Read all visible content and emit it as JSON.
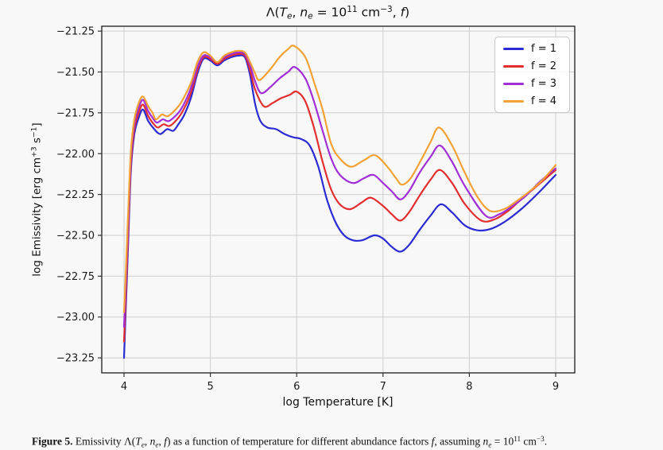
{
  "title": {
    "parts": [
      "Λ(",
      "T",
      "e",
      ", ",
      "n",
      "e",
      " = 10",
      "11",
      " cm",
      "−3",
      ", ",
      "f",
      ")"
    ]
  },
  "ylabel": {
    "parts": [
      "log Emissivity [erg cm",
      "+3",
      " s",
      "−1",
      "]"
    ]
  },
  "xlabel": "log Temperature [K]",
  "caption": {
    "parts": [
      "Figure 5.",
      " Emissivity Λ(",
      "T",
      "e",
      ", ",
      "n",
      "e",
      ", ",
      "f",
      ") as a function of temperature for different abundance factors ",
      "f",
      ", assuming ",
      "n",
      "e",
      " = 10",
      "11",
      " cm",
      "−3",
      "."
    ]
  },
  "colors": {
    "background": "#f8f8f8",
    "grid": "#cfcfcf",
    "spine": "#2c2c2c",
    "tick": "#333333"
  },
  "chart_data": {
    "type": "line",
    "title": "Λ(T_e, n_e = 10^11 cm^-3, f)",
    "xlabel": "log Temperature [K]",
    "ylabel": "log Emissivity [erg cm^+3 s^-1]",
    "grid": true,
    "legend_position": "upper right",
    "xlim": [
      3.742,
      9.221
    ],
    "ylim": [
      -23.342,
      -21.22
    ],
    "x_ticks": {
      "values": [
        4,
        5,
        6,
        7,
        8,
        9
      ],
      "labels": [
        "4",
        "5",
        "6",
        "7",
        "8",
        "9"
      ]
    },
    "y_ticks": {
      "values": [
        -21.25,
        -21.5,
        -21.75,
        -22.0,
        -22.25,
        -22.5,
        -22.75,
        -23.0,
        -23.25
      ],
      "labels": [
        "−21.25",
        "−21.50",
        "−21.75",
        "−22.00",
        "−22.25",
        "−22.50",
        "−22.75",
        "−23.00",
        "−23.25"
      ]
    },
    "series": [
      {
        "name": "f = 1",
        "color": "#2b2bd3",
        "points": [
          [
            4.0,
            -23.25
          ],
          [
            4.02,
            -22.95
          ],
          [
            4.05,
            -22.52
          ],
          [
            4.08,
            -22.1
          ],
          [
            4.12,
            -21.88
          ],
          [
            4.17,
            -21.78
          ],
          [
            4.22,
            -21.73
          ],
          [
            4.28,
            -21.8
          ],
          [
            4.35,
            -21.85
          ],
          [
            4.42,
            -21.88
          ],
          [
            4.5,
            -21.85
          ],
          [
            4.57,
            -21.86
          ],
          [
            4.63,
            -21.82
          ],
          [
            4.7,
            -21.76
          ],
          [
            4.78,
            -21.65
          ],
          [
            4.85,
            -21.51
          ],
          [
            4.92,
            -21.42
          ],
          [
            5.0,
            -21.43
          ],
          [
            5.08,
            -21.46
          ],
          [
            5.16,
            -21.43
          ],
          [
            5.24,
            -21.41
          ],
          [
            5.32,
            -21.4
          ],
          [
            5.4,
            -21.41
          ],
          [
            5.46,
            -21.52
          ],
          [
            5.52,
            -21.7
          ],
          [
            5.58,
            -21.8
          ],
          [
            5.66,
            -21.84
          ],
          [
            5.76,
            -21.85
          ],
          [
            5.86,
            -21.88
          ],
          [
            5.96,
            -21.9
          ],
          [
            6.05,
            -21.91
          ],
          [
            6.15,
            -21.95
          ],
          [
            6.25,
            -22.08
          ],
          [
            6.35,
            -22.28
          ],
          [
            6.45,
            -22.42
          ],
          [
            6.55,
            -22.5
          ],
          [
            6.65,
            -22.53
          ],
          [
            6.76,
            -22.53
          ],
          [
            6.9,
            -22.5
          ],
          [
            7.0,
            -22.52
          ],
          [
            7.1,
            -22.57
          ],
          [
            7.2,
            -22.6
          ],
          [
            7.3,
            -22.56
          ],
          [
            7.42,
            -22.47
          ],
          [
            7.55,
            -22.38
          ],
          [
            7.67,
            -22.31
          ],
          [
            7.8,
            -22.36
          ],
          [
            7.95,
            -22.44
          ],
          [
            8.1,
            -22.47
          ],
          [
            8.25,
            -22.46
          ],
          [
            8.4,
            -22.42
          ],
          [
            8.6,
            -22.34
          ],
          [
            8.8,
            -22.24
          ],
          [
            9.0,
            -22.13
          ]
        ]
      },
      {
        "name": "f = 2",
        "color": "#e22e2e",
        "points": [
          [
            4.0,
            -23.15
          ],
          [
            4.02,
            -22.88
          ],
          [
            4.05,
            -22.46
          ],
          [
            4.08,
            -22.06
          ],
          [
            4.12,
            -21.85
          ],
          [
            4.17,
            -21.75
          ],
          [
            4.22,
            -21.7
          ],
          [
            4.28,
            -21.77
          ],
          [
            4.33,
            -21.81
          ],
          [
            4.39,
            -21.84
          ],
          [
            4.46,
            -21.82
          ],
          [
            4.53,
            -21.83
          ],
          [
            4.63,
            -21.78
          ],
          [
            4.7,
            -21.72
          ],
          [
            4.78,
            -21.62
          ],
          [
            4.85,
            -21.49
          ],
          [
            4.92,
            -21.41
          ],
          [
            5.0,
            -21.42
          ],
          [
            5.08,
            -21.45
          ],
          [
            5.16,
            -21.42
          ],
          [
            5.24,
            -21.4
          ],
          [
            5.32,
            -21.39
          ],
          [
            5.4,
            -21.4
          ],
          [
            5.46,
            -21.49
          ],
          [
            5.52,
            -21.61
          ],
          [
            5.62,
            -21.71
          ],
          [
            5.72,
            -21.69
          ],
          [
            5.82,
            -21.66
          ],
          [
            5.92,
            -21.64
          ],
          [
            6.0,
            -21.62
          ],
          [
            6.1,
            -21.68
          ],
          [
            6.2,
            -21.84
          ],
          [
            6.3,
            -22.05
          ],
          [
            6.4,
            -22.22
          ],
          [
            6.5,
            -22.31
          ],
          [
            6.62,
            -22.34
          ],
          [
            6.75,
            -22.3
          ],
          [
            6.86,
            -22.27
          ],
          [
            7.0,
            -22.32
          ],
          [
            7.1,
            -22.37
          ],
          [
            7.2,
            -22.41
          ],
          [
            7.3,
            -22.36
          ],
          [
            7.42,
            -22.26
          ],
          [
            7.55,
            -22.16
          ],
          [
            7.66,
            -22.1
          ],
          [
            7.8,
            -22.18
          ],
          [
            7.95,
            -22.31
          ],
          [
            8.14,
            -22.41
          ],
          [
            8.3,
            -22.4
          ],
          [
            8.45,
            -22.35
          ],
          [
            8.6,
            -22.28
          ],
          [
            8.8,
            -22.19
          ],
          [
            9.0,
            -22.1
          ]
        ]
      },
      {
        "name": "f = 3",
        "color": "#a12fd6",
        "points": [
          [
            4.0,
            -23.06
          ],
          [
            4.02,
            -22.8
          ],
          [
            4.05,
            -22.4
          ],
          [
            4.08,
            -22.02
          ],
          [
            4.12,
            -21.82
          ],
          [
            4.17,
            -21.72
          ],
          [
            4.22,
            -21.67
          ],
          [
            4.28,
            -21.74
          ],
          [
            4.33,
            -21.78
          ],
          [
            4.38,
            -21.81
          ],
          [
            4.45,
            -21.79
          ],
          [
            4.52,
            -21.8
          ],
          [
            4.63,
            -21.75
          ],
          [
            4.7,
            -21.69
          ],
          [
            4.78,
            -21.59
          ],
          [
            4.85,
            -21.47
          ],
          [
            4.92,
            -21.4
          ],
          [
            5.0,
            -21.41
          ],
          [
            5.08,
            -21.44
          ],
          [
            5.16,
            -21.41
          ],
          [
            5.24,
            -21.39
          ],
          [
            5.32,
            -21.38
          ],
          [
            5.4,
            -21.39
          ],
          [
            5.46,
            -21.46
          ],
          [
            5.52,
            -21.56
          ],
          [
            5.59,
            -21.63
          ],
          [
            5.7,
            -21.59
          ],
          [
            5.8,
            -21.54
          ],
          [
            5.9,
            -21.5
          ],
          [
            5.98,
            -21.47
          ],
          [
            6.1,
            -21.54
          ],
          [
            6.2,
            -21.68
          ],
          [
            6.3,
            -21.86
          ],
          [
            6.4,
            -22.03
          ],
          [
            6.5,
            -22.13
          ],
          [
            6.65,
            -22.18
          ],
          [
            6.78,
            -22.15
          ],
          [
            6.89,
            -22.13
          ],
          [
            7.0,
            -22.18
          ],
          [
            7.1,
            -22.23
          ],
          [
            7.2,
            -22.28
          ],
          [
            7.3,
            -22.23
          ],
          [
            7.42,
            -22.12
          ],
          [
            7.55,
            -22.02
          ],
          [
            7.66,
            -21.95
          ],
          [
            7.8,
            -22.05
          ],
          [
            7.95,
            -22.2
          ],
          [
            8.19,
            -22.38
          ],
          [
            8.35,
            -22.37
          ],
          [
            8.5,
            -22.32
          ],
          [
            8.65,
            -22.26
          ],
          [
            8.82,
            -22.17
          ],
          [
            9.0,
            -22.09
          ]
        ]
      },
      {
        "name": "f = 4",
        "color": "#f3a235",
        "points": [
          [
            4.0,
            -22.97
          ],
          [
            4.02,
            -22.73
          ],
          [
            4.05,
            -22.34
          ],
          [
            4.08,
            -21.98
          ],
          [
            4.12,
            -21.79
          ],
          [
            4.17,
            -21.69
          ],
          [
            4.22,
            -21.65
          ],
          [
            4.28,
            -21.71
          ],
          [
            4.33,
            -21.75
          ],
          [
            4.37,
            -21.79
          ],
          [
            4.44,
            -21.76
          ],
          [
            4.51,
            -21.77
          ],
          [
            4.63,
            -21.71
          ],
          [
            4.7,
            -21.65
          ],
          [
            4.78,
            -21.56
          ],
          [
            4.85,
            -21.44
          ],
          [
            4.92,
            -21.38
          ],
          [
            5.0,
            -21.4
          ],
          [
            5.08,
            -21.44
          ],
          [
            5.16,
            -21.4
          ],
          [
            5.24,
            -21.38
          ],
          [
            5.32,
            -21.37
          ],
          [
            5.4,
            -21.38
          ],
          [
            5.46,
            -21.44
          ],
          [
            5.52,
            -21.51
          ],
          [
            5.57,
            -21.55
          ],
          [
            5.7,
            -21.48
          ],
          [
            5.8,
            -21.41
          ],
          [
            5.9,
            -21.36
          ],
          [
            5.97,
            -21.34
          ],
          [
            6.1,
            -21.41
          ],
          [
            6.2,
            -21.56
          ],
          [
            6.3,
            -21.73
          ],
          [
            6.4,
            -21.94
          ],
          [
            6.5,
            -22.03
          ],
          [
            6.63,
            -22.08
          ],
          [
            6.78,
            -22.04
          ],
          [
            6.91,
            -22.01
          ],
          [
            7.05,
            -22.08
          ],
          [
            7.15,
            -22.15
          ],
          [
            7.22,
            -22.19
          ],
          [
            7.32,
            -22.15
          ],
          [
            7.45,
            -22.03
          ],
          [
            7.55,
            -21.93
          ],
          [
            7.65,
            -21.84
          ],
          [
            7.8,
            -21.95
          ],
          [
            7.95,
            -22.12
          ],
          [
            8.1,
            -22.27
          ],
          [
            8.24,
            -22.35
          ],
          [
            8.4,
            -22.34
          ],
          [
            8.55,
            -22.29
          ],
          [
            8.7,
            -22.23
          ],
          [
            8.85,
            -22.16
          ],
          [
            9.0,
            -22.07
          ]
        ]
      }
    ]
  }
}
